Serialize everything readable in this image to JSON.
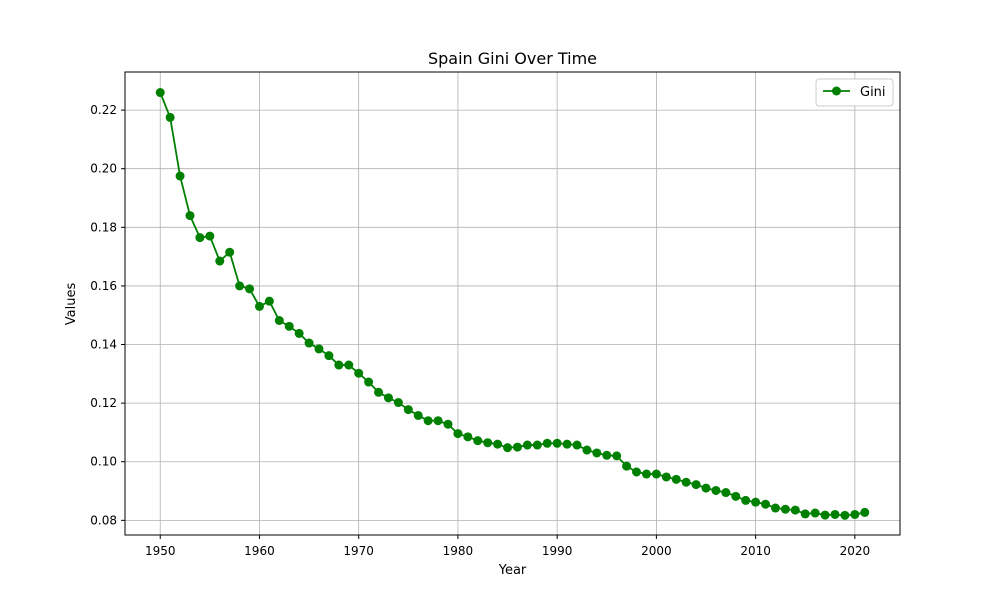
{
  "chart_data": {
    "type": "line",
    "title": "Spain Gini Over Time",
    "xlabel": "Year",
    "ylabel": "Values",
    "xlim": [
      1946.45,
      2024.55
    ],
    "ylim": [
      0.075,
      0.233
    ],
    "x_ticks": [
      1950,
      1960,
      1970,
      1980,
      1990,
      2000,
      2010,
      2020
    ],
    "y_ticks": [
      0.08,
      0.1,
      0.12,
      0.14,
      0.16,
      0.18,
      0.2,
      0.22
    ],
    "y_tick_labels": [
      "0.08",
      "0.10",
      "0.12",
      "0.14",
      "0.16",
      "0.18",
      "0.20",
      "0.22"
    ],
    "grid": true,
    "legend_position": "top-right",
    "series": [
      {
        "name": "Gini",
        "color": "#008000",
        "marker": "circle",
        "x": [
          1950,
          1951,
          1952,
          1953,
          1954,
          1955,
          1956,
          1957,
          1958,
          1959,
          1960,
          1961,
          1962,
          1963,
          1964,
          1965,
          1966,
          1967,
          1968,
          1969,
          1970,
          1971,
          1972,
          1973,
          1974,
          1975,
          1976,
          1977,
          1978,
          1979,
          1980,
          1981,
          1982,
          1983,
          1984,
          1985,
          1986,
          1987,
          1988,
          1989,
          1990,
          1991,
          1992,
          1993,
          1994,
          1995,
          1996,
          1997,
          1998,
          1999,
          2000,
          2001,
          2002,
          2003,
          2004,
          2005,
          2006,
          2007,
          2008,
          2009,
          2010,
          2011,
          2012,
          2013,
          2014,
          2015,
          2016,
          2017,
          2018,
          2019,
          2020,
          2021
        ],
        "values": [
          0.226,
          0.2175,
          0.1975,
          0.184,
          0.1765,
          0.177,
          0.1685,
          0.1715,
          0.16,
          0.159,
          0.153,
          0.1548,
          0.1482,
          0.1462,
          0.1438,
          0.1405,
          0.1385,
          0.1362,
          0.133,
          0.133,
          0.1302,
          0.1272,
          0.1237,
          0.1218,
          0.1202,
          0.1178,
          0.1158,
          0.114,
          0.114,
          0.1128,
          0.1096,
          0.1085,
          0.1072,
          0.1065,
          0.106,
          0.1048,
          0.105,
          0.1057,
          0.1057,
          0.1063,
          0.1063,
          0.106,
          0.1057,
          0.104,
          0.103,
          0.1022,
          0.102,
          0.0985,
          0.0965,
          0.0958,
          0.0958,
          0.0948,
          0.094,
          0.093,
          0.0922,
          0.091,
          0.0902,
          0.0895,
          0.0882,
          0.0868,
          0.0862,
          0.0855,
          0.0842,
          0.0838,
          0.0835,
          0.0822,
          0.0825,
          0.0818,
          0.082,
          0.0817,
          0.082,
          0.0827
        ]
      }
    ]
  }
}
